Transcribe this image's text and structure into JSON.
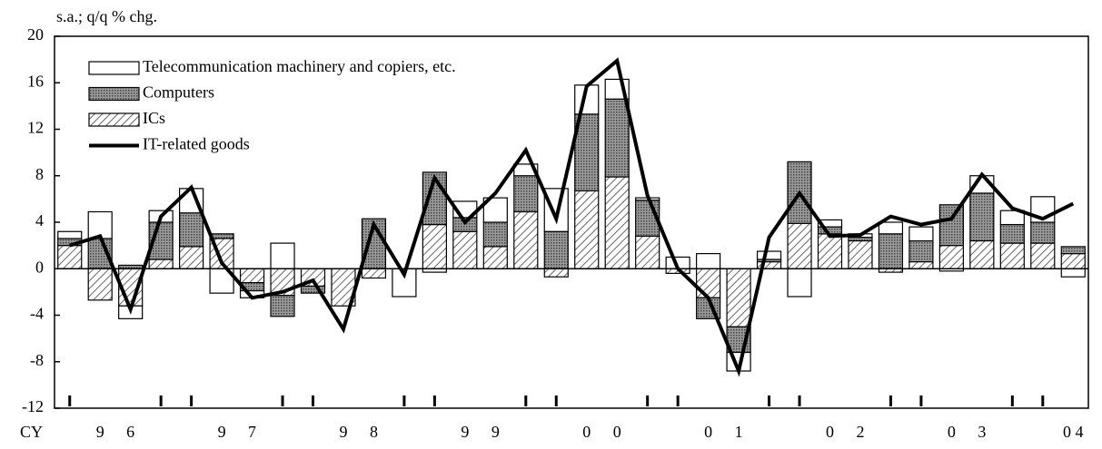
{
  "chart_data": {
    "type": "bar",
    "unit_label": "s.a.; q/q % chg.",
    "x_prefix": "CY",
    "categories": [
      null,
      "9",
      "6",
      null,
      null,
      "9",
      "7",
      null,
      null,
      "9",
      "8",
      null,
      null,
      "9",
      "9",
      null,
      null,
      "0",
      "0",
      null,
      null,
      "0",
      "1",
      null,
      null,
      "0",
      "2",
      null,
      null,
      "0",
      "3",
      null,
      null,
      "0 4"
    ],
    "series": [
      {
        "name": "Telecommunication machinery and copiers, etc.",
        "type": "bar",
        "color": "#ffffff",
        "pattern": "none",
        "values": [
          0.6,
          2.3,
          -1.1,
          1.0,
          2.1,
          -2.1,
          -0.6,
          2.2,
          0,
          0,
          0,
          -2.4,
          -0.3,
          1.4,
          2.1,
          1.0,
          3.7,
          2.5,
          1.7,
          0.2,
          1.0,
          1.3,
          -1.6,
          0.7,
          -2.4,
          0.6,
          0.3,
          1.0,
          1.2,
          -0.2,
          1.5,
          1.2,
          2.2,
          -0.7
        ]
      },
      {
        "name": "Computers",
        "type": "bar",
        "color": "#8c8c8c",
        "pattern": "dots",
        "values": [
          0.6,
          2.6,
          0.3,
          3.2,
          2.9,
          0.4,
          -0.7,
          -1.8,
          -0.6,
          0,
          4.3,
          0,
          4.5,
          1.2,
          2.1,
          3.1,
          3.2,
          6.6,
          6.7,
          3.1,
          0,
          -1.8,
          -2.2,
          0.2,
          5.3,
          0.6,
          0.3,
          3.0,
          1.8,
          3.5,
          4.1,
          1.6,
          1.8,
          0.6
        ]
      },
      {
        "name": "ICs",
        "type": "bar",
        "color": "#ffffff",
        "pattern": "hatch",
        "values": [
          2.0,
          -2.7,
          -3.2,
          0.8,
          1.9,
          2.6,
          -1.2,
          -2.3,
          -1.5,
          -3.2,
          -0.8,
          0,
          3.8,
          3.2,
          1.9,
          4.9,
          -0.7,
          6.7,
          7.9,
          2.8,
          -0.4,
          -2.5,
          -5.0,
          0.6,
          3.9,
          3.0,
          2.4,
          -0.3,
          0.6,
          2.0,
          2.4,
          2.2,
          2.2,
          1.3
        ]
      },
      {
        "name": "IT-related goods",
        "type": "line",
        "color": "#000000",
        "values": [
          2.0,
          2.8,
          -3.5,
          4.5,
          7.0,
          0.5,
          -2.5,
          -2.0,
          -1.0,
          -5.2,
          3.8,
          -0.5,
          7.8,
          4.0,
          6.5,
          10.2,
          4.3,
          15.7,
          17.9,
          6.3,
          0.0,
          -2.5,
          -8.8,
          2.7,
          6.5,
          2.8,
          2.9,
          4.5,
          3.8,
          4.3,
          8.1,
          5.2,
          4.3,
          5.6
        ]
      }
    ],
    "ylim": [
      -12,
      20
    ],
    "yticks": [
      -12,
      -8,
      -4,
      0,
      4,
      8,
      12,
      16,
      20
    ],
    "legend": "top-left"
  }
}
